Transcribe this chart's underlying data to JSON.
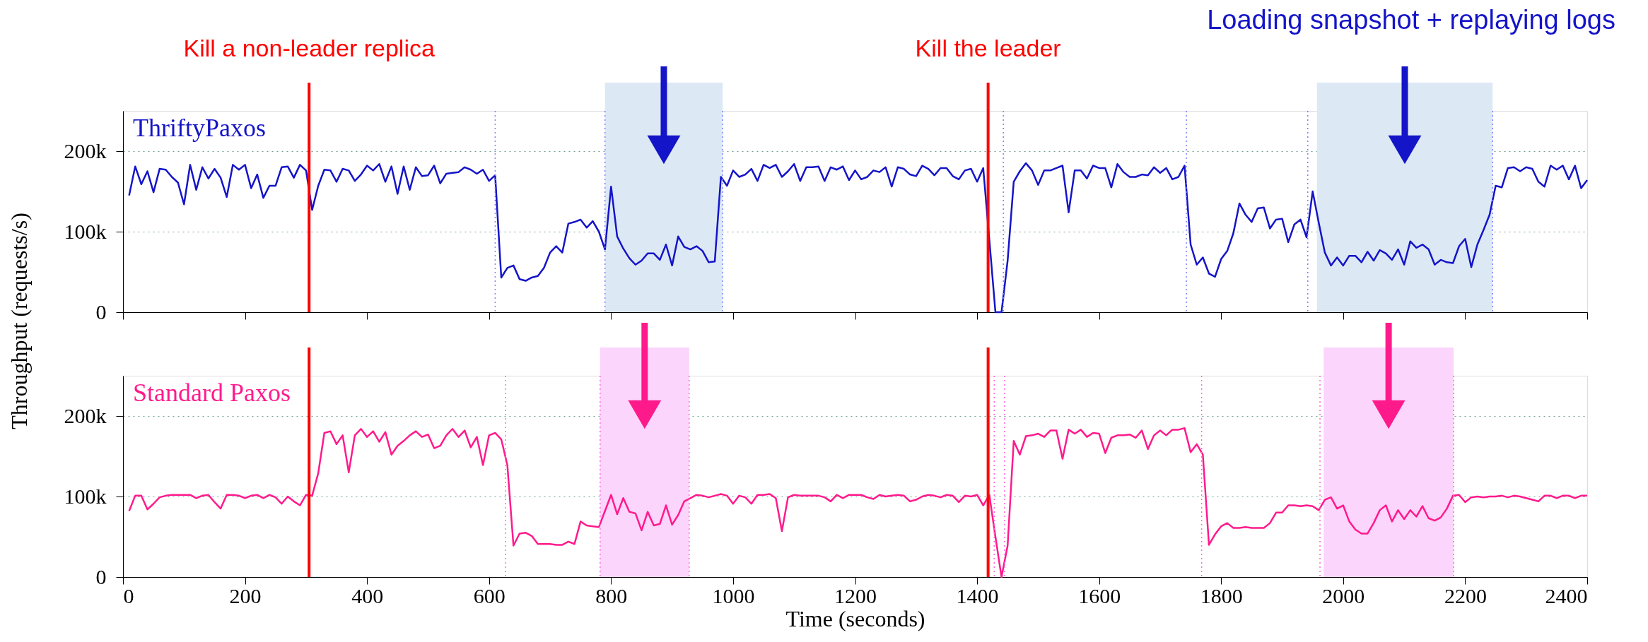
{
  "chart_data": [
    {
      "type": "line",
      "ylabel": "Throughput (requests/s)",
      "annotations": [
        "Loading snapshot + replaying logs"
      ],
      "xlim": [
        0,
        2400
      ],
      "xticks": [
        0,
        200,
        400,
        600,
        800,
        1000,
        1200,
        1400,
        1600,
        1800,
        2000,
        2200,
        2400
      ],
      "ylim": [
        0,
        250000
      ],
      "yticks": [
        0,
        {
          "value": 100000,
          "label": "100k"
        },
        {
          "value": 200000,
          "label": "200k"
        }
      ],
      "grid": "y",
      "tick_labels": "y",
      "line_style": "solid",
      "x": [
        10,
        20,
        30,
        40,
        50,
        60,
        70,
        80,
        90,
        100,
        110,
        120,
        130,
        140,
        150,
        160,
        170,
        180,
        190,
        200,
        210,
        220,
        230,
        240,
        250,
        260,
        270,
        280,
        290,
        300,
        310,
        320,
        330,
        340,
        350,
        360,
        370,
        380,
        390,
        400,
        410,
        420,
        430,
        440,
        450,
        460,
        470,
        480,
        490,
        500,
        510,
        520,
        530,
        540,
        550,
        560,
        570,
        580,
        590,
        600,
        610,
        620,
        630,
        640,
        650,
        660,
        670,
        680,
        690,
        700,
        710,
        720,
        730,
        740,
        750,
        760,
        770,
        780,
        790,
        800,
        810,
        820,
        830,
        840,
        850,
        860,
        870,
        880,
        890,
        900,
        910,
        920,
        930,
        940,
        950,
        960,
        970,
        980,
        990,
        1000,
        1010,
        1020,
        1030,
        1040,
        1050,
        1060,
        1070,
        1080,
        1090,
        1100,
        1110,
        1120,
        1130,
        1140,
        1150,
        1160,
        1170,
        1180,
        1190,
        1200,
        1210,
        1220,
        1230,
        1240,
        1250,
        1260,
        1270,
        1280,
        1290,
        1300,
        1310,
        1320,
        1330,
        1340,
        1350,
        1360,
        1370,
        1380,
        1390,
        1400,
        1410,
        1420,
        1430,
        1440,
        1450,
        1460,
        1470,
        1480,
        1490,
        1500,
        1510,
        1520,
        1530,
        1540,
        1550,
        1560,
        1570,
        1580,
        1590,
        1600,
        1610,
        1620,
        1630,
        1640,
        1650,
        1660,
        1670,
        1680,
        1690,
        1700,
        1710,
        1720,
        1730,
        1740,
        1750,
        1760,
        1770,
        1780,
        1790,
        1800,
        1810,
        1820,
        1830,
        1840,
        1850,
        1860,
        1870,
        1880,
        1890,
        1900,
        1910,
        1920,
        1930,
        1940,
        1950,
        1960,
        1970,
        1980,
        1990,
        2000,
        2010,
        2020,
        2030,
        2040,
        2050,
        2060,
        2070,
        2080,
        2090,
        2100,
        2110,
        2120,
        2130,
        2140,
        2150,
        2160,
        2170,
        2180,
        2190,
        2200,
        2210,
        2220,
        2230,
        2240,
        2250,
        2260,
        2270,
        2280,
        2290,
        2300,
        2310,
        2320,
        2330,
        2340,
        2350,
        2360,
        2370,
        2380,
        2390,
        2400
      ],
      "series": [
        {
          "name": "ThriftyPaxos",
          "color": "#1414c8",
          "values": [
            145000,
            181000,
            159000,
            175000,
            149000,
            178000,
            177000,
            168000,
            161000,
            134000,
            183000,
            152000,
            180000,
            166000,
            178000,
            167000,
            143000,
            183000,
            177000,
            183000,
            154000,
            171000,
            142000,
            157000,
            157000,
            180000,
            181000,
            167000,
            183000,
            176000,
            127000,
            157000,
            177000,
            176000,
            162000,
            178000,
            176000,
            163000,
            171000,
            182000,
            176000,
            184000,
            162000,
            181000,
            147000,
            181000,
            152000,
            180000,
            169000,
            170000,
            182000,
            160000,
            172000,
            173000,
            174000,
            180000,
            177000,
            172000,
            177000,
            163000,
            170000,
            43000,
            55000,
            58000,
            41000,
            39000,
            43000,
            45000,
            55000,
            74000,
            82000,
            74000,
            110000,
            112000,
            115000,
            105000,
            113000,
            100000,
            78000,
            156000,
            94000,
            79000,
            67000,
            59000,
            64000,
            73000,
            73000,
            65000,
            84000,
            58000,
            94000,
            81000,
            78000,
            82000,
            76000,
            62000,
            63000,
            168000,
            157000,
            176000,
            168000,
            171000,
            178000,
            163000,
            183000,
            179000,
            183000,
            168000,
            175000,
            184000,
            163000,
            180000,
            180000,
            181000,
            163000,
            180000,
            177000,
            181000,
            164000,
            176000,
            165000,
            168000,
            176000,
            174000,
            180000,
            156000,
            180000,
            178000,
            171000,
            169000,
            182000,
            178000,
            170000,
            179000,
            179000,
            169000,
            165000,
            176000,
            178000,
            162000,
            179000,
            90000,
            0,
            0,
            64000,
            162000,
            175000,
            185000,
            176000,
            158000,
            176000,
            176000,
            179000,
            182000,
            124000,
            176000,
            176000,
            166000,
            182000,
            179000,
            179000,
            155000,
            184000,
            174000,
            168000,
            168000,
            171000,
            170000,
            180000,
            173000,
            179000,
            165000,
            168000,
            182000,
            84000,
            59000,
            68000,
            48000,
            44000,
            66000,
            76000,
            98000,
            135000,
            121000,
            112000,
            129000,
            130000,
            104000,
            115000,
            116000,
            87000,
            109000,
            115000,
            93000,
            150000,
            111000,
            74000,
            58000,
            68000,
            58000,
            70000,
            70000,
            62000,
            75000,
            64000,
            77000,
            73000,
            65000,
            78000,
            59000,
            88000,
            80000,
            84000,
            78000,
            59000,
            65000,
            62000,
            61000,
            82000,
            91000,
            56000,
            84000,
            102000,
            121000,
            157000,
            155000,
            179000,
            180000,
            175000,
            180000,
            178000,
            162000,
            156000,
            182000,
            177000,
            182000,
            165000,
            182000,
            154000,
            164000
          ]
        }
      ],
      "ref_lines": [
        {
          "axis": "x",
          "value": 305,
          "label": "Kill a non-leader replica",
          "color": "#ff0000",
          "line_style": "solid"
        },
        {
          "axis": "x",
          "value": 1418,
          "label": "Kill the leader",
          "color": "#ff0000",
          "line_style": "solid"
        },
        {
          "axis": "x",
          "value": 610,
          "color": "#8080ff",
          "line_style": "dotted"
        },
        {
          "axis": "x",
          "value": 790,
          "color": "#8080ff",
          "line_style": "dotted"
        },
        {
          "axis": "x",
          "value": 983,
          "color": "#8080ff",
          "line_style": "dotted"
        },
        {
          "axis": "x",
          "value": 1443,
          "color": "#8080ff",
          "line_style": "dotted"
        },
        {
          "axis": "x",
          "value": 1743,
          "color": "#8080ff",
          "line_style": "dotted"
        },
        {
          "axis": "x",
          "value": 1942,
          "color": "#8080ff",
          "line_style": "dotted"
        },
        {
          "axis": "x",
          "value": 2245,
          "color": "#8080ff",
          "line_style": "dotted"
        }
      ],
      "bands": [
        {
          "axis": "x",
          "from": 790,
          "to": 983,
          "color": "#dce8f4"
        },
        {
          "axis": "x",
          "from": 1957,
          "to": 2245,
          "color": "#dce8f4"
        }
      ]
    },
    {
      "type": "line",
      "xlabel": "Time (seconds)",
      "xlim": [
        0,
        2400
      ],
      "xticks": [
        0,
        200,
        400,
        600,
        800,
        1000,
        1200,
        1400,
        1600,
        1800,
        2000,
        2200,
        2400
      ],
      "ylim": [
        0,
        250000
      ],
      "yticks": [
        0,
        {
          "value": 100000,
          "label": "100k"
        },
        {
          "value": 200000,
          "label": "200k"
        }
      ],
      "grid": "y",
      "line_style": "solid",
      "x": [
        10,
        20,
        30,
        40,
        50,
        60,
        70,
        80,
        90,
        100,
        110,
        120,
        130,
        140,
        150,
        160,
        170,
        180,
        190,
        200,
        210,
        220,
        230,
        240,
        250,
        260,
        270,
        280,
        290,
        300,
        310,
        320,
        330,
        340,
        350,
        360,
        370,
        380,
        390,
        400,
        410,
        420,
        430,
        440,
        450,
        460,
        470,
        480,
        490,
        500,
        510,
        520,
        530,
        540,
        550,
        560,
        570,
        580,
        590,
        600,
        610,
        620,
        630,
        640,
        650,
        660,
        670,
        680,
        690,
        700,
        710,
        720,
        730,
        740,
        750,
        760,
        770,
        780,
        790,
        800,
        810,
        820,
        830,
        840,
        850,
        860,
        870,
        880,
        890,
        900,
        910,
        920,
        930,
        940,
        950,
        960,
        970,
        980,
        990,
        1000,
        1010,
        1020,
        1030,
        1040,
        1050,
        1060,
        1070,
        1080,
        1090,
        1100,
        1110,
        1120,
        1130,
        1140,
        1150,
        1160,
        1170,
        1180,
        1190,
        1200,
        1210,
        1220,
        1230,
        1240,
        1250,
        1260,
        1270,
        1280,
        1290,
        1300,
        1310,
        1320,
        1330,
        1340,
        1350,
        1360,
        1370,
        1380,
        1390,
        1400,
        1410,
        1420,
        1430,
        1440,
        1450,
        1460,
        1470,
        1480,
        1490,
        1500,
        1510,
        1520,
        1530,
        1540,
        1550,
        1560,
        1570,
        1580,
        1590,
        1600,
        1610,
        1620,
        1630,
        1640,
        1650,
        1660,
        1670,
        1680,
        1690,
        1700,
        1710,
        1720,
        1730,
        1740,
        1750,
        1760,
        1770,
        1780,
        1790,
        1800,
        1810,
        1820,
        1830,
        1840,
        1850,
        1860,
        1870,
        1880,
        1890,
        1900,
        1910,
        1920,
        1930,
        1940,
        1950,
        1960,
        1970,
        1980,
        1990,
        2000,
        2010,
        2020,
        2030,
        2040,
        2050,
        2060,
        2070,
        2080,
        2090,
        2100,
        2110,
        2120,
        2130,
        2140,
        2150,
        2160,
        2170,
        2180,
        2190,
        2200,
        2210,
        2220,
        2230,
        2240,
        2250,
        2260,
        2270,
        2280,
        2290,
        2300,
        2310,
        2320,
        2330,
        2340,
        2350,
        2360,
        2370,
        2380,
        2390,
        2400
      ],
      "series": [
        {
          "name": "Standard Paxos",
          "color": "#ff1a8c",
          "values": [
            82000,
            101000,
            101000,
            84000,
            91000,
            99000,
            101000,
            102000,
            102000,
            102000,
            102000,
            98000,
            101000,
            102000,
            93000,
            85000,
            102000,
            102000,
            101000,
            98000,
            101000,
            102000,
            98000,
            102000,
            99000,
            91000,
            100000,
            94000,
            89000,
            102000,
            101000,
            129000,
            179000,
            181000,
            165000,
            176000,
            130000,
            176000,
            184000,
            174000,
            181000,
            168000,
            180000,
            152000,
            163000,
            169000,
            176000,
            181000,
            174000,
            177000,
            160000,
            163000,
            176000,
            184000,
            174000,
            182000,
            161000,
            174000,
            139000,
            176000,
            179000,
            171000,
            139000,
            39000,
            54000,
            55000,
            51000,
            41000,
            41000,
            41000,
            40000,
            40000,
            44000,
            41000,
            69000,
            64000,
            63000,
            62000,
            82000,
            102000,
            78000,
            98000,
            81000,
            79000,
            58000,
            81000,
            64000,
            66000,
            89000,
            65000,
            77000,
            94000,
            98000,
            102000,
            101000,
            99000,
            101000,
            103000,
            101000,
            91000,
            101000,
            99000,
            91000,
            102000,
            102000,
            103000,
            98000,
            57000,
            99000,
            102000,
            101000,
            101000,
            101000,
            101000,
            99000,
            94000,
            102000,
            98000,
            102000,
            102000,
            102000,
            99000,
            97000,
            102000,
            100000,
            101000,
            102000,
            101000,
            94000,
            96000,
            100000,
            102000,
            101000,
            99000,
            102000,
            101000,
            93000,
            101000,
            100000,
            102000,
            89000,
            102000,
            50000,
            0,
            39000,
            169000,
            152000,
            175000,
            176000,
            178000,
            174000,
            182000,
            182000,
            147000,
            183000,
            178000,
            183000,
            174000,
            179000,
            178000,
            154000,
            173000,
            176000,
            176000,
            177000,
            173000,
            182000,
            159000,
            176000,
            182000,
            176000,
            183000,
            183000,
            185000,
            155000,
            165000,
            152000,
            40000,
            53000,
            63000,
            67000,
            61000,
            61000,
            62000,
            61000,
            61000,
            61000,
            67000,
            80000,
            80000,
            89000,
            89000,
            88000,
            89000,
            88000,
            83000,
            96000,
            99000,
            85000,
            89000,
            69000,
            59000,
            54000,
            54000,
            67000,
            83000,
            89000,
            69000,
            83000,
            72000,
            83000,
            75000,
            88000,
            73000,
            70000,
            74000,
            85000,
            101000,
            102000,
            93000,
            99000,
            100000,
            99000,
            100000,
            100000,
            101000,
            99000,
            101000,
            100000,
            98000,
            96000,
            94000,
            101000,
            101000,
            98000,
            101000,
            101000,
            98000,
            101000,
            101000
          ]
        }
      ],
      "ref_lines": [
        {
          "axis": "x",
          "value": 305,
          "color": "#ff0000",
          "line_style": "solid"
        },
        {
          "axis": "x",
          "value": 1418,
          "color": "#ff0000",
          "line_style": "solid"
        },
        {
          "axis": "x",
          "value": 627,
          "color": "#ff66dd",
          "line_style": "dotted"
        },
        {
          "axis": "x",
          "value": 782,
          "color": "#ff66dd",
          "line_style": "dotted"
        },
        {
          "axis": "x",
          "value": 928,
          "color": "#ff66dd",
          "line_style": "dotted"
        },
        {
          "axis": "x",
          "value": 1428,
          "color": "#ff66dd",
          "line_style": "dotted"
        },
        {
          "axis": "x",
          "value": 1445,
          "color": "#ff66dd",
          "line_style": "dotted"
        },
        {
          "axis": "x",
          "value": 1768,
          "color": "#ff66dd",
          "line_style": "dotted"
        },
        {
          "axis": "x",
          "value": 1962,
          "color": "#ff66dd",
          "line_style": "dotted"
        },
        {
          "axis": "x",
          "value": 2181,
          "color": "#ff66dd",
          "line_style": "dotted"
        }
      ],
      "bands": [
        {
          "axis": "x",
          "from": 782,
          "to": 928,
          "color": "#fcd5fc"
        },
        {
          "axis": "x",
          "from": 1968,
          "to": 2181,
          "color": "#fcd5fc"
        }
      ]
    }
  ]
}
